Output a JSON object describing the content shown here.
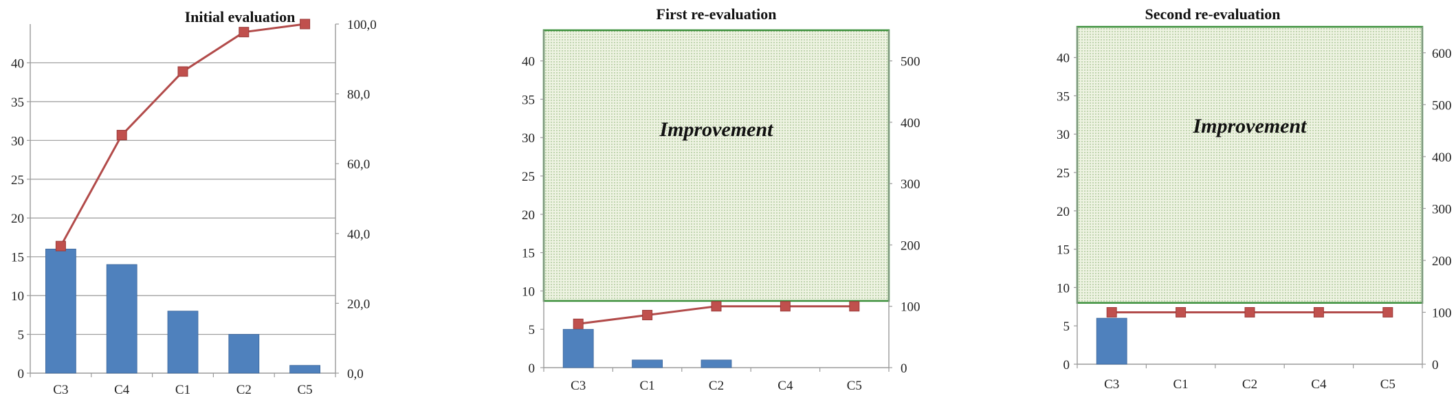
{
  "colors": {
    "bar": "#4f81bd",
    "bar_edge": "#3b659a",
    "line": "#b24b4a",
    "marker": "#c0504d",
    "grid": "#9a9a9a",
    "axis": "#9a9a9a",
    "improvement_fill": "#eef3e2",
    "improvement_dots": "#9fbf8a",
    "improvement_border": "#3a8f3a"
  },
  "chart_data": [
    {
      "type": "bar",
      "title": "Initial evaluation",
      "categories": [
        "C3",
        "C4",
        "C1",
        "C2",
        "C5"
      ],
      "values": [
        16,
        14,
        8,
        5,
        1
      ],
      "ylim": [
        0,
        45
      ],
      "yticks": [
        0,
        5,
        10,
        15,
        20,
        25,
        30,
        35,
        40
      ],
      "ytick_labels": [
        "0",
        "5",
        "10",
        "15",
        "20",
        "25",
        "30",
        "35",
        "40"
      ],
      "y2lim": [
        0,
        100
      ],
      "y2ticks": [
        0,
        20,
        40,
        60,
        80,
        100
      ],
      "y2tick_labels": [
        "0,0",
        "20,0",
        "40,0",
        "60,0",
        "80,0",
        "100,0"
      ],
      "line_values": [
        36.4,
        68.2,
        86.4,
        97.7,
        100.0
      ],
      "grid": true,
      "improvement": null
    },
    {
      "type": "bar",
      "title": "First re-evaluation",
      "categories": [
        "C3",
        "C1",
        "C2",
        "C4",
        "C5"
      ],
      "values": [
        5,
        1,
        1,
        0,
        0
      ],
      "ylim": [
        0,
        44
      ],
      "yticks": [
        0,
        5,
        10,
        15,
        20,
        25,
        30,
        35,
        40
      ],
      "ytick_labels": [
        "0",
        "5",
        "10",
        "15",
        "20",
        "25",
        "30",
        "35",
        "40"
      ],
      "y2lim": [
        0,
        550
      ],
      "y2ticks": [
        0,
        100,
        200,
        300,
        400,
        500
      ],
      "y2tick_labels": [
        "0",
        "100",
        "200",
        "300",
        "400",
        "500"
      ],
      "line_values": [
        71.4,
        85.7,
        100,
        100,
        100
      ],
      "grid": false,
      "improvement": {
        "label": "Improvement",
        "y_from": 8.7,
        "y_to": 44
      }
    },
    {
      "type": "bar",
      "title": "Second re-evaluation",
      "categories": [
        "C3",
        "C1",
        "C2",
        "C4",
        "C5"
      ],
      "values": [
        6,
        0,
        0,
        0,
        0
      ],
      "ylim": [
        0,
        44
      ],
      "yticks": [
        0,
        5,
        10,
        15,
        20,
        25,
        30,
        35,
        40
      ],
      "ytick_labels": [
        "0",
        "5",
        "10",
        "15",
        "20",
        "25",
        "30",
        "35",
        "40"
      ],
      "y2lim": [
        0,
        650
      ],
      "y2ticks": [
        0,
        100,
        200,
        300,
        400,
        500,
        600
      ],
      "y2tick_labels": [
        "0",
        "100",
        "200",
        "300",
        "400",
        "500",
        "600"
      ],
      "line_values": [
        100,
        100,
        100,
        100,
        100
      ],
      "grid": false,
      "improvement": {
        "label": "Improvement",
        "y_from": 8,
        "y_to": 44
      }
    }
  ]
}
